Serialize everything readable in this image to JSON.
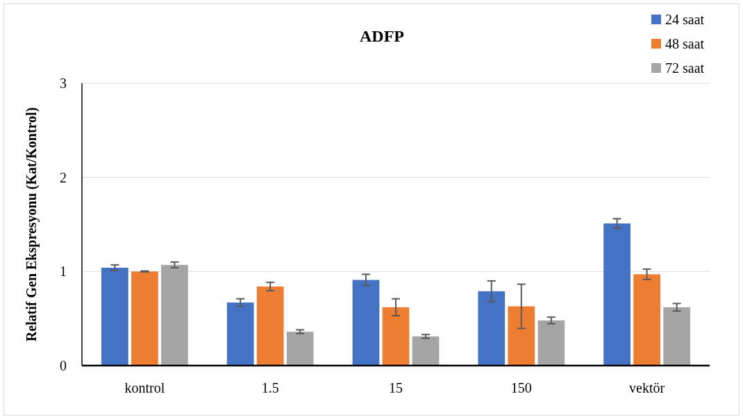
{
  "chart_data": {
    "type": "bar",
    "title": "ADFP",
    "ylabel": "Relatif Gen  Ekspresyonu (Kat/Kontrol)",
    "categories": [
      "kontrol",
      "1.5",
      "15",
      "150",
      "vektör"
    ],
    "series": [
      {
        "name": "24 saat",
        "color": "#4472c4",
        "values": [
          1.04,
          0.67,
          0.91,
          0.79,
          1.51
        ],
        "errors": [
          0.03,
          0.04,
          0.06,
          0.11,
          0.05
        ]
      },
      {
        "name": "48 saat",
        "color": "#ed7d31",
        "values": [
          1.0,
          0.84,
          0.62,
          0.63,
          0.97
        ],
        "errors": [
          0.005,
          0.045,
          0.09,
          0.235,
          0.055
        ]
      },
      {
        "name": "72 saat",
        "color": "#a5a5a5",
        "values": [
          1.07,
          0.36,
          0.31,
          0.48,
          0.62
        ],
        "errors": [
          0.03,
          0.02,
          0.02,
          0.035,
          0.04
        ]
      }
    ],
    "ylim": [
      0,
      3
    ],
    "yticks": [
      0,
      1,
      2,
      3
    ],
    "grid": "y",
    "legend": "top right"
  }
}
